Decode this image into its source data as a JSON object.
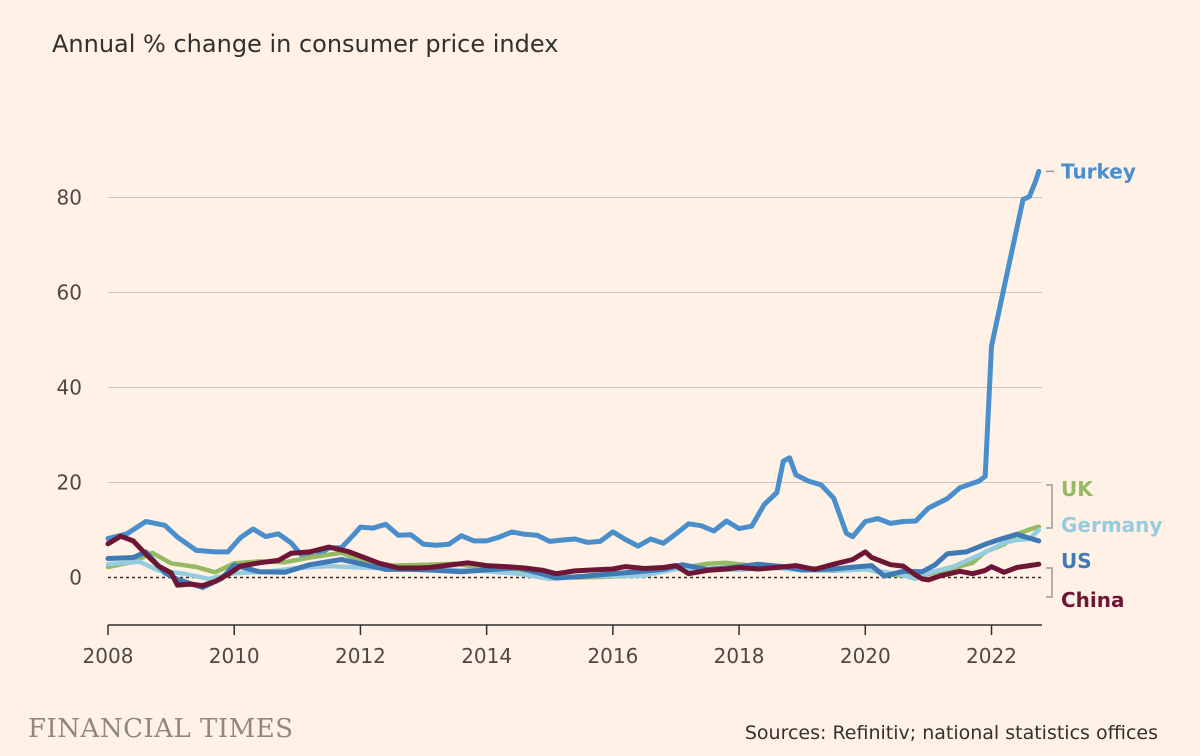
{
  "chart_data": {
    "type": "line",
    "title": "Annual % change in consumer price index",
    "y_ticks": [
      0,
      20,
      40,
      60,
      80
    ],
    "x_ticks": [
      2008,
      2010,
      2012,
      2014,
      2016,
      2018,
      2020,
      2022
    ],
    "ylim": [
      -10,
      90
    ],
    "xlim": [
      2008,
      2022.8
    ],
    "grid": "horizontal",
    "zero_line": "dotted",
    "series": [
      {
        "name": "Turkey",
        "color": "#4A8ECC",
        "points": [
          [
            2008.0,
            8.2
          ],
          [
            2008.3,
            9.2
          ],
          [
            2008.6,
            11.8
          ],
          [
            2008.9,
            11.0
          ],
          [
            2009.1,
            8.5
          ],
          [
            2009.4,
            5.7
          ],
          [
            2009.7,
            5.4
          ],
          [
            2009.9,
            5.4
          ],
          [
            2010.1,
            8.4
          ],
          [
            2010.3,
            10.2
          ],
          [
            2010.5,
            8.6
          ],
          [
            2010.7,
            9.2
          ],
          [
            2010.9,
            7.3
          ],
          [
            2011.1,
            4.2
          ],
          [
            2011.3,
            4.5
          ],
          [
            2011.5,
            6.2
          ],
          [
            2011.7,
            6.3
          ],
          [
            2011.9,
            9.1
          ],
          [
            2012.0,
            10.6
          ],
          [
            2012.2,
            10.4
          ],
          [
            2012.4,
            11.2
          ],
          [
            2012.6,
            8.9
          ],
          [
            2012.8,
            9.0
          ],
          [
            2013.0,
            7.0
          ],
          [
            2013.2,
            6.8
          ],
          [
            2013.4,
            7.0
          ],
          [
            2013.6,
            8.8
          ],
          [
            2013.8,
            7.7
          ],
          [
            2014.0,
            7.7
          ],
          [
            2014.2,
            8.5
          ],
          [
            2014.4,
            9.6
          ],
          [
            2014.6,
            9.1
          ],
          [
            2014.8,
            8.9
          ],
          [
            2015.0,
            7.6
          ],
          [
            2015.2,
            7.9
          ],
          [
            2015.4,
            8.1
          ],
          [
            2015.6,
            7.4
          ],
          [
            2015.8,
            7.6
          ],
          [
            2016.0,
            9.6
          ],
          [
            2016.2,
            8.0
          ],
          [
            2016.4,
            6.6
          ],
          [
            2016.6,
            8.1
          ],
          [
            2016.8,
            7.2
          ],
          [
            2017.0,
            9.2
          ],
          [
            2017.2,
            11.3
          ],
          [
            2017.4,
            10.9
          ],
          [
            2017.6,
            9.8
          ],
          [
            2017.8,
            11.9
          ],
          [
            2018.0,
            10.3
          ],
          [
            2018.2,
            10.8
          ],
          [
            2018.4,
            15.4
          ],
          [
            2018.6,
            17.9
          ],
          [
            2018.7,
            24.5
          ],
          [
            2018.8,
            25.2
          ],
          [
            2018.9,
            21.6
          ],
          [
            2019.1,
            20.3
          ],
          [
            2019.3,
            19.5
          ],
          [
            2019.5,
            16.7
          ],
          [
            2019.7,
            9.3
          ],
          [
            2019.8,
            8.6
          ],
          [
            2020.0,
            11.8
          ],
          [
            2020.2,
            12.4
          ],
          [
            2020.4,
            11.4
          ],
          [
            2020.6,
            11.8
          ],
          [
            2020.8,
            11.9
          ],
          [
            2021.0,
            14.6
          ],
          [
            2021.3,
            16.6
          ],
          [
            2021.5,
            18.9
          ],
          [
            2021.8,
            20.3
          ],
          [
            2021.9,
            21.3
          ],
          [
            2022.0,
            48.7
          ],
          [
            2022.2,
            61.1
          ],
          [
            2022.4,
            73.5
          ],
          [
            2022.5,
            79.6
          ],
          [
            2022.6,
            80.2
          ],
          [
            2022.7,
            83.5
          ],
          [
            2022.75,
            85.5
          ]
        ]
      },
      {
        "name": "UK",
        "color": "#96B964",
        "points": [
          [
            2008.0,
            2.2
          ],
          [
            2008.4,
            3.3
          ],
          [
            2008.7,
            5.2
          ],
          [
            2009.0,
            3.0
          ],
          [
            2009.4,
            2.2
          ],
          [
            2009.7,
            1.1
          ],
          [
            2010.0,
            3.0
          ],
          [
            2010.4,
            3.4
          ],
          [
            2010.8,
            3.2
          ],
          [
            2011.2,
            4.2
          ],
          [
            2011.7,
            5.2
          ],
          [
            2012.0,
            3.6
          ],
          [
            2012.5,
            2.5
          ],
          [
            2013.0,
            2.7
          ],
          [
            2013.5,
            2.9
          ],
          [
            2014.0,
            1.9
          ],
          [
            2014.5,
            1.6
          ],
          [
            2015.0,
            0.3
          ],
          [
            2015.4,
            0.0
          ],
          [
            2015.8,
            0.1
          ],
          [
            2016.2,
            0.3
          ],
          [
            2016.6,
            0.9
          ],
          [
            2017.0,
            1.8
          ],
          [
            2017.5,
            2.9
          ],
          [
            2017.8,
            3.1
          ],
          [
            2018.2,
            2.5
          ],
          [
            2018.6,
            2.4
          ],
          [
            2019.0,
            2.0
          ],
          [
            2019.5,
            1.8
          ],
          [
            2020.0,
            1.8
          ],
          [
            2020.4,
            0.6
          ],
          [
            2020.7,
            0.3
          ],
          [
            2021.0,
            0.7
          ],
          [
            2021.4,
            2.0
          ],
          [
            2021.7,
            3.1
          ],
          [
            2021.9,
            5.4
          ],
          [
            2022.2,
            7.0
          ],
          [
            2022.4,
            9.1
          ],
          [
            2022.6,
            10.1
          ],
          [
            2022.75,
            10.7
          ]
        ]
      },
      {
        "name": "Germany",
        "color": "#96CCE0",
        "points": [
          [
            2008.0,
            2.8
          ],
          [
            2008.5,
            3.3
          ],
          [
            2008.8,
            1.5
          ],
          [
            2009.2,
            0.8
          ],
          [
            2009.6,
            -0.3
          ],
          [
            2010.0,
            0.9
          ],
          [
            2010.5,
            1.2
          ],
          [
            2011.0,
            2.0
          ],
          [
            2011.5,
            2.4
          ],
          [
            2012.0,
            2.1
          ],
          [
            2012.5,
            1.9
          ],
          [
            2013.0,
            1.6
          ],
          [
            2013.5,
            1.6
          ],
          [
            2014.0,
            1.3
          ],
          [
            2014.5,
            0.8
          ],
          [
            2015.0,
            -0.3
          ],
          [
            2015.5,
            0.3
          ],
          [
            2016.0,
            0.3
          ],
          [
            2016.5,
            0.4
          ],
          [
            2017.0,
            1.8
          ],
          [
            2017.5,
            1.7
          ],
          [
            2018.0,
            1.6
          ],
          [
            2018.5,
            2.1
          ],
          [
            2019.0,
            1.5
          ],
          [
            2019.5,
            1.4
          ],
          [
            2020.0,
            1.7
          ],
          [
            2020.5,
            0.8
          ],
          [
            2020.8,
            -0.3
          ],
          [
            2021.0,
            1.0
          ],
          [
            2021.4,
            2.3
          ],
          [
            2021.7,
            4.1
          ],
          [
            2021.9,
            5.3
          ],
          [
            2022.2,
            7.3
          ],
          [
            2022.4,
            7.9
          ],
          [
            2022.6,
            8.1
          ],
          [
            2022.75,
            10.0
          ]
        ]
      },
      {
        "name": "US",
        "color": "#3F7AB5",
        "points": [
          [
            2008.0,
            4.0
          ],
          [
            2008.4,
            4.2
          ],
          [
            2008.6,
            5.4
          ],
          [
            2008.9,
            1.0
          ],
          [
            2009.1,
            -0.4
          ],
          [
            2009.5,
            -2.1
          ],
          [
            2009.8,
            -0.2
          ],
          [
            2010.0,
            2.6
          ],
          [
            2010.4,
            1.2
          ],
          [
            2010.8,
            1.1
          ],
          [
            2011.2,
            2.7
          ],
          [
            2011.7,
            3.8
          ],
          [
            2012.0,
            2.9
          ],
          [
            2012.4,
            1.7
          ],
          [
            2012.8,
            1.7
          ],
          [
            2013.2,
            1.5
          ],
          [
            2013.6,
            1.2
          ],
          [
            2014.0,
            1.6
          ],
          [
            2014.5,
            2.0
          ],
          [
            2014.9,
            0.7
          ],
          [
            2015.1,
            -0.1
          ],
          [
            2015.5,
            0.2
          ],
          [
            2015.9,
            0.7
          ],
          [
            2016.3,
            1.1
          ],
          [
            2016.8,
            1.7
          ],
          [
            2017.1,
            2.7
          ],
          [
            2017.5,
            1.7
          ],
          [
            2017.9,
            2.1
          ],
          [
            2018.3,
            2.8
          ],
          [
            2018.7,
            2.3
          ],
          [
            2019.0,
            1.6
          ],
          [
            2019.5,
            1.8
          ],
          [
            2019.9,
            2.3
          ],
          [
            2020.1,
            2.5
          ],
          [
            2020.3,
            0.3
          ],
          [
            2020.6,
            1.3
          ],
          [
            2020.9,
            1.2
          ],
          [
            2021.1,
            2.6
          ],
          [
            2021.3,
            5.0
          ],
          [
            2021.6,
            5.4
          ],
          [
            2021.9,
            7.0
          ],
          [
            2022.1,
            7.9
          ],
          [
            2022.4,
            9.1
          ],
          [
            2022.6,
            8.3
          ],
          [
            2022.75,
            7.7
          ]
        ]
      },
      {
        "name": "China",
        "color": "#6E1635",
        "points": [
          [
            2008.0,
            7.1
          ],
          [
            2008.2,
            8.7
          ],
          [
            2008.4,
            7.7
          ],
          [
            2008.6,
            4.9
          ],
          [
            2008.8,
            2.4
          ],
          [
            2009.0,
            1.0
          ],
          [
            2009.1,
            -1.6
          ],
          [
            2009.3,
            -1.4
          ],
          [
            2009.5,
            -1.7
          ],
          [
            2009.7,
            -0.8
          ],
          [
            2009.9,
            0.6
          ],
          [
            2010.1,
            2.4
          ],
          [
            2010.4,
            3.1
          ],
          [
            2010.7,
            3.6
          ],
          [
            2010.9,
            5.1
          ],
          [
            2011.2,
            5.4
          ],
          [
            2011.5,
            6.4
          ],
          [
            2011.8,
            5.5
          ],
          [
            2012.0,
            4.5
          ],
          [
            2012.3,
            3.0
          ],
          [
            2012.6,
            2.0
          ],
          [
            2012.9,
            2.0
          ],
          [
            2013.1,
            2.1
          ],
          [
            2013.4,
            2.6
          ],
          [
            2013.7,
            3.1
          ],
          [
            2014.0,
            2.5
          ],
          [
            2014.3,
            2.3
          ],
          [
            2014.6,
            2.0
          ],
          [
            2014.9,
            1.5
          ],
          [
            2015.1,
            0.8
          ],
          [
            2015.4,
            1.4
          ],
          [
            2015.7,
            1.6
          ],
          [
            2016.0,
            1.8
          ],
          [
            2016.2,
            2.3
          ],
          [
            2016.5,
            1.9
          ],
          [
            2016.8,
            2.1
          ],
          [
            2017.0,
            2.5
          ],
          [
            2017.2,
            0.8
          ],
          [
            2017.5,
            1.5
          ],
          [
            2017.8,
            1.8
          ],
          [
            2018.0,
            2.1
          ],
          [
            2018.3,
            1.8
          ],
          [
            2018.6,
            2.1
          ],
          [
            2018.9,
            2.5
          ],
          [
            2019.2,
            1.7
          ],
          [
            2019.5,
            2.8
          ],
          [
            2019.8,
            3.8
          ],
          [
            2020.0,
            5.4
          ],
          [
            2020.1,
            4.2
          ],
          [
            2020.4,
            2.7
          ],
          [
            2020.6,
            2.4
          ],
          [
            2020.8,
            0.5
          ],
          [
            2020.9,
            -0.3
          ],
          [
            2021.0,
            -0.5
          ],
          [
            2021.2,
            0.4
          ],
          [
            2021.5,
            1.3
          ],
          [
            2021.7,
            0.8
          ],
          [
            2021.9,
            1.5
          ],
          [
            2022.0,
            2.3
          ],
          [
            2022.2,
            1.1
          ],
          [
            2022.4,
            2.1
          ],
          [
            2022.6,
            2.5
          ],
          [
            2022.75,
            2.8
          ]
        ]
      }
    ],
    "end_labels": [
      {
        "name": "Turkey",
        "color": "#4A8ECC",
        "value": 85.5
      },
      {
        "name": "UK",
        "color": "#96B964",
        "value": 10.7
      },
      {
        "name": "Germany",
        "color": "#96CCE0",
        "value": 10.0
      },
      {
        "name": "US",
        "color": "#3F7AB5",
        "value": 7.7
      },
      {
        "name": "China",
        "color": "#6E1635",
        "value": 2.8
      }
    ]
  },
  "footer": {
    "brand": "FINANCIAL TIMES",
    "source": "Sources: Refinitiv; national statistics offices"
  },
  "colors": {
    "background": "#FFF1E5",
    "grid": "#CEC6BE",
    "axis": "#33302E"
  }
}
